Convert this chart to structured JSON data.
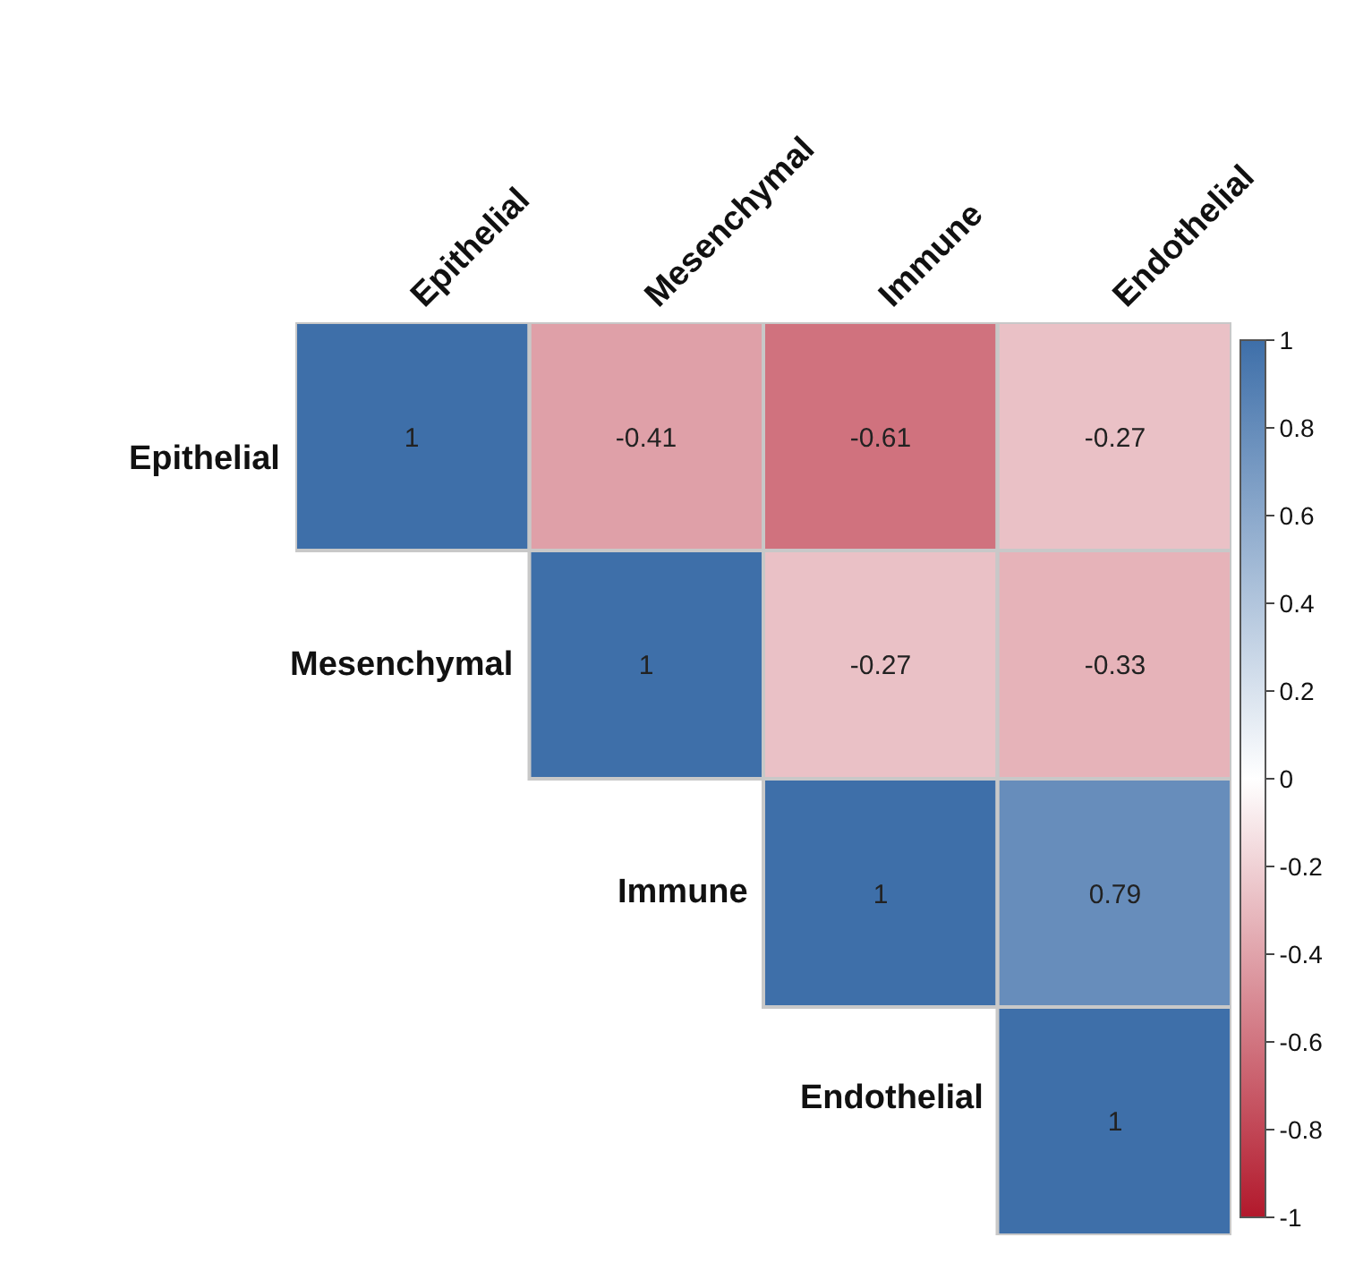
{
  "chart_data": {
    "type": "heatmap",
    "categories": [
      "Epithelial",
      "Mesenchymal",
      "Immune",
      "Endothelial"
    ],
    "y_categories": [
      "Epithelial",
      "Mesenchymal",
      "Immune",
      "Endothelial"
    ],
    "cells": [
      [
        1,
        -0.41,
        -0.61,
        -0.27
      ],
      [
        null,
        1,
        -0.27,
        -0.33
      ],
      [
        null,
        null,
        1,
        0.79
      ],
      [
        null,
        null,
        null,
        1
      ]
    ],
    "data_labels": true,
    "clim": [
      -1,
      1
    ],
    "cticks": [
      1,
      0.8,
      0.6,
      0.4,
      0.2,
      0,
      -0.2,
      -0.4,
      -0.6,
      -0.8,
      -1
    ]
  }
}
